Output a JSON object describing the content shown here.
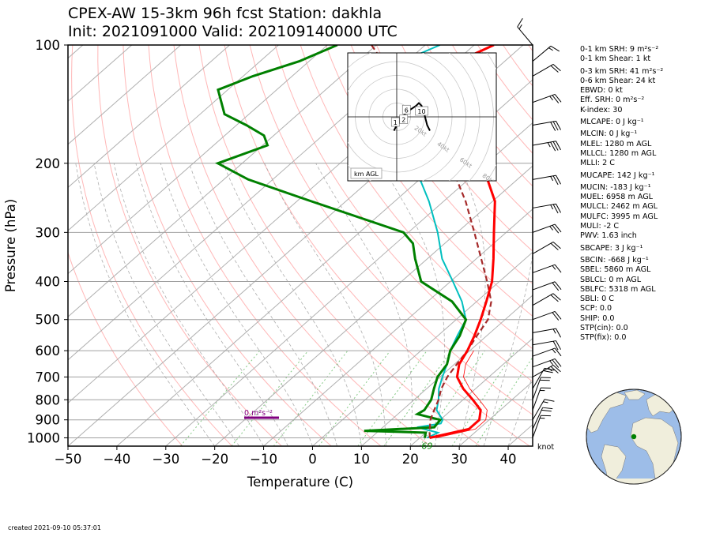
{
  "title_line1": "CPEX-AW 15-3km  96h fcst  Station: dakhla",
  "title_line2": "Init: 2021091000  Valid: 202109140000 UTC",
  "created": "created 2021-09-10 05:37:01",
  "colors": {
    "temperature": "#ff0000",
    "dewpoint": "#008000",
    "wetbulb": "#00bfbf",
    "parcel": "#a52a2a",
    "srh_bar": "#800080",
    "dry_adiabat": "#ff9999",
    "moist_adiabat": "#999999",
    "mixing_ratio": "#66bb66",
    "isobar": "#a0a0a0",
    "globe_ocean": "#9dbde8",
    "globe_land": "#f0eedc",
    "station": "#008000"
  },
  "chart_data": {
    "type": "skew-t",
    "xlabel": "Temperature (C)",
    "ylabel": "Pressure (hPa)",
    "xlim": [
      -50,
      45
    ],
    "ylim": [
      1050,
      100
    ],
    "xticks": [
      -50,
      -40,
      -30,
      -20,
      -10,
      0,
      10,
      20,
      30,
      40
    ],
    "yticks": [
      100,
      200,
      300,
      400,
      500,
      600,
      700,
      800,
      900,
      1000
    ],
    "y_scale": "log",
    "grid": true,
    "wind_unit": "knot",
    "surface_label": "69",
    "srh_label": "0 m²s⁻²",
    "series": [
      {
        "key": "temperature",
        "p": [
          1000,
          950,
          900,
          850,
          800,
          750,
          700,
          650,
          600,
          550,
          500,
          450,
          400,
          350,
          300,
          250,
          200,
          170,
          150,
          130,
          120,
          110,
          100
        ],
        "t": [
          22.0,
          28.0,
          28.0,
          26.0,
          22.0,
          17.5,
          13.5,
          11.0,
          9.5,
          7.5,
          5.0,
          2.0,
          -1.5,
          -6.5,
          -12.5,
          -19.5,
          -31.0,
          -41.0,
          -49.5,
          -58.0,
          -62.0,
          -59.5,
          -56.0
        ]
      },
      {
        "key": "dewpoint",
        "p": [
          1000,
          970,
          960,
          940,
          900,
          870,
          850,
          800,
          750,
          700,
          650,
          600,
          550,
          500,
          450,
          400,
          350,
          320,
          300,
          250,
          220,
          200,
          180,
          170,
          160,
          150,
          130,
          120,
          110,
          100
        ],
        "t": [
          21.0,
          20.0,
          7.0,
          20.5,
          20.0,
          14.0,
          14.5,
          13.5,
          11.5,
          9.5,
          8.5,
          6.0,
          4.5,
          2.0,
          -5.0,
          -16.0,
          -22.5,
          -26.5,
          -31.0,
          -57.0,
          -75.0,
          -85.0,
          -79.0,
          -82.0,
          -88.0,
          -95.0,
          -102.0,
          -98.0,
          -92.0,
          -88.0
        ]
      },
      {
        "key": "wetbulb",
        "p": [
          1000,
          970,
          940,
          920,
          900,
          850,
          800,
          750,
          700,
          650,
          600,
          550,
          500,
          450,
          400,
          350,
          300,
          250,
          200,
          170,
          150,
          130,
          120,
          110,
          100
        ],
        "t": [
          21.5,
          22.5,
          17.0,
          21.0,
          20.5,
          17.0,
          15.0,
          12.5,
          10.5,
          8.5,
          6.0,
          4.0,
          2.0,
          -3.0,
          -9.5,
          -17.0,
          -24.0,
          -33.0,
          -45.0,
          -54.0,
          -62.0,
          -70.0,
          -74.0,
          -71.0,
          -67.0
        ]
      },
      {
        "key": "parcel",
        "p": [
          1000,
          950,
          900,
          850,
          800,
          750,
          700,
          650,
          600,
          550,
          500,
          450,
          400,
          350,
          300,
          250,
          200,
          170,
          150,
          130,
          120,
          110,
          100
        ],
        "t": [
          22.0,
          20.0,
          18.0,
          16.5,
          15.0,
          13.0,
          11.5,
          10.5,
          9.5,
          8.0,
          6.5,
          3.0,
          -2.5,
          -9.0,
          -16.5,
          -25.5,
          -37.5,
          -47.0,
          -55.0,
          -64.0,
          -69.0,
          -75.0,
          -81.0
        ]
      }
    ],
    "hodograph": {
      "label": "km AGL",
      "ring_labels": [
        "20kt",
        "40kt",
        "60kt",
        "80kt"
      ],
      "u": [
        -1,
        0,
        1,
        2,
        4,
        7,
        8,
        9,
        10,
        11,
        12
      ],
      "v": [
        -5,
        -3,
        -1,
        0,
        2,
        4,
        5,
        4,
        1,
        -3,
        -5
      ],
      "height_labels": [
        {
          "text": "1",
          "u": -0.5,
          "v": -2
        },
        {
          "text": "2",
          "u": 2.5,
          "v": -1
        },
        {
          "text": "6",
          "u": 3.5,
          "v": 2.5
        },
        {
          "text": "10",
          "u": 9,
          "v": 2
        }
      ]
    },
    "wind_barbs": [
      {
        "p": 1000,
        "spd": 15,
        "dir": 20
      },
      {
        "p": 950,
        "spd": 20,
        "dir": 25
      },
      {
        "p": 900,
        "spd": 15,
        "dir": 30
      },
      {
        "p": 850,
        "spd": 15,
        "dir": 20
      },
      {
        "p": 800,
        "spd": 20,
        "dir": 20
      },
      {
        "p": 750,
        "spd": 20,
        "dir": 30
      },
      {
        "p": 700,
        "spd": 25,
        "dir": 60
      },
      {
        "p": 660,
        "spd": 25,
        "dir": 70
      },
      {
        "p": 620,
        "spd": 15,
        "dir": 70
      },
      {
        "p": 580,
        "spd": 20,
        "dir": 80
      },
      {
        "p": 540,
        "spd": 15,
        "dir": 80
      },
      {
        "p": 500,
        "spd": 20,
        "dir": 70
      },
      {
        "p": 460,
        "spd": 20,
        "dir": 60
      },
      {
        "p": 420,
        "spd": 20,
        "dir": 70
      },
      {
        "p": 380,
        "spd": 15,
        "dir": 70
      },
      {
        "p": 340,
        "spd": 20,
        "dir": 60
      },
      {
        "p": 300,
        "spd": 25,
        "dir": 70
      },
      {
        "p": 260,
        "spd": 25,
        "dir": 80
      },
      {
        "p": 220,
        "spd": 25,
        "dir": 80
      },
      {
        "p": 180,
        "spd": 35,
        "dir": 80
      },
      {
        "p": 160,
        "spd": 30,
        "dir": 80
      },
      {
        "p": 140,
        "spd": 25,
        "dir": 70
      },
      {
        "p": 120,
        "spd": 20,
        "dir": 60
      },
      {
        "p": 110,
        "spd": 15,
        "dir": 50
      },
      {
        "p": 100,
        "spd": 15,
        "dir": 320
      }
    ]
  },
  "stats": [
    "0-1 km SRH: 9 m²s⁻²",
    "0-1 km Shear: 1 kt",
    "0-3 km SRH: 41 m²s⁻²",
    "0-6 km Shear: 24 kt",
    "EBWD: 0 kt",
    "Eff. SRH: 0 m²s⁻²",
    "K-index: 30",
    "MLCAPE: 0 J kg⁻¹",
    "MLCIN: 0 J kg⁻¹",
    "MLEL: 1280 m AGL",
    "MLLCL: 1280 m AGL",
    "MLLI: 2 C",
    "MUCAPE: 142 J kg⁻¹",
    "MUCIN: -183 J kg⁻¹",
    "MUEL: 6958 m AGL",
    "MULCL: 2462 m AGL",
    "MULFC: 3995 m AGL",
    "MULI: -2 C",
    "PWV: 1.63 inch",
    "SBCAPE: 3 J kg⁻¹",
    "SBCIN: -668 J kg⁻¹",
    "SBEL: 5860 m AGL",
    "SBLCL: 0 m AGL",
    "SBLFC: 5318 m AGL",
    "SBLI: 0 C",
    "SCP: 0.0",
    "SHIP: 0.0",
    "STP(cin): 0.0",
    "STP(fix): 0.0"
  ]
}
